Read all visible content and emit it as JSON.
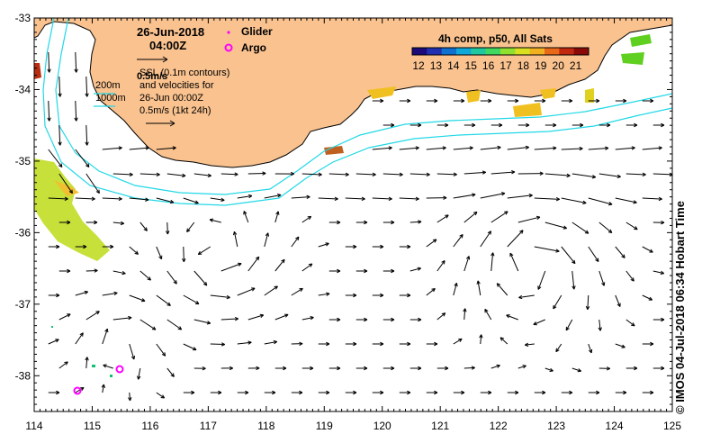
{
  "title": {
    "date": "26-Jun-2018",
    "time": "04:00Z"
  },
  "legend": {
    "glider_label": "Glider",
    "argo_label": "Argo",
    "glider_color": "#ff00ff",
    "argo_color": "#ff00ff",
    "ssl_text": "SSL  (0.1m contours)",
    "scale_overlap": "0.5m/s",
    "velocities_text_1": "and velocities for",
    "velocities_text_2": "26-Jun 00:00Z",
    "velocities_text_3": "0.5m/s (1kt 24h)",
    "contour_200": "200m",
    "contour_1000": "1000m"
  },
  "colorbar": {
    "title": "4h comp, p50, All Sats",
    "ticks": [
      "12",
      "13",
      "14",
      "15",
      "16",
      "17",
      "18",
      "19",
      "20",
      "21"
    ]
  },
  "axes": {
    "x_ticks": [
      "114",
      "115",
      "116",
      "117",
      "118",
      "119",
      "120",
      "121",
      "122",
      "123",
      "124",
      "125"
    ],
    "y_ticks": [
      "-33",
      "-34",
      "-35",
      "-36",
      "-37",
      "-38"
    ],
    "x_range": [
      114,
      125
    ],
    "y_range": [
      -38.5,
      -33
    ]
  },
  "credit": "© IMOS 04-Jul-2018 06:34 Hobart Time",
  "colors": {
    "land": "#f9c28f",
    "contour": "#22d8e6",
    "arrow": "#000000"
  }
}
